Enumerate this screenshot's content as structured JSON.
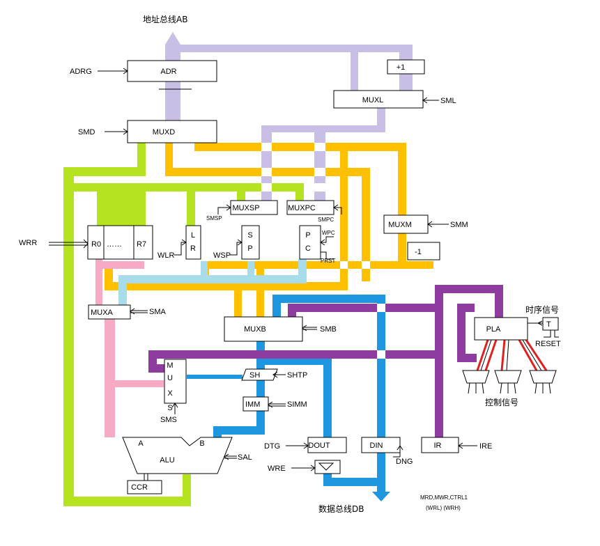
{
  "colors": {
    "address_bus": "#c9bfe6",
    "yellow_bus": "#ffc000",
    "green_bus": "#b5e31f",
    "blue_bus": "#1e96e0",
    "purple_bus": "#8e3ca0",
    "pink_bus": "#f7aac4",
    "lightblue_bus": "#a8dcea",
    "red_lines": "#e02020"
  },
  "bus_labels": {
    "address_bus": "地址总线AB",
    "data_bus": "数据总线DB",
    "timing": "时序信号",
    "control": "控制信号"
  },
  "registers": {
    "adr": "ADR",
    "muxd": "MUXD",
    "muxl": "MUXL",
    "plus1": "+1",
    "muxsp": "MUXSP",
    "muxpc": "MUXPC",
    "muxm": "MUXM",
    "minus1": "-1",
    "r0": "R0",
    "dots": "……",
    "r7": "R7",
    "lr_l": "L",
    "lr_r": "R",
    "sp_s": "S",
    "sp_p": "P",
    "pc_p": "P",
    "pc_c": "C",
    "muxa": "MUXA",
    "muxb": "MUXB",
    "pla": "PLA",
    "t": "T",
    "mux_m": "M",
    "mux_u": "U",
    "mux_x": "X",
    "mux_s": "S",
    "sh": "SH",
    "imm": "IMM",
    "alu": "ALU",
    "alu_a": "A",
    "alu_b": "B",
    "ccr": "CCR",
    "dout": "DOUT",
    "din": "DIN",
    "ir": "IR"
  },
  "signals": {
    "adrg": "ADRG",
    "smd": "SMD",
    "sml": "SML",
    "smsp": "SMSP",
    "smpc": "SMPC",
    "wpc": "WPC",
    "prst": "PRST",
    "smm": "SMM",
    "wrr": "WRR",
    "wlr": "WLR",
    "wsp": "WSP",
    "sma": "SMA",
    "smb": "SMB",
    "reset": "RESET",
    "shtp": "SHTP",
    "simm": "SIMM",
    "sms": "SMS",
    "sal": "SAL",
    "dtg": "DTG",
    "dng": "DNG",
    "ire": "IRE",
    "wre": "WRE",
    "mrd_mwr": "MRD,MWR,CTRL1",
    "wrl_wrh": "(WRL)  (WRH)"
  }
}
